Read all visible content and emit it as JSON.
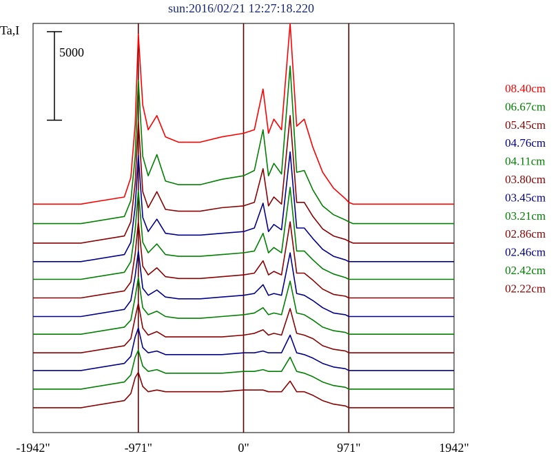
{
  "title": "sun:2016/02/21 12:27:18.220",
  "chart_data": {
    "type": "line",
    "title": "sun:2016/02/21 12:27:18.220",
    "ylabel": "Ta,I",
    "scale_bar_label": "5000",
    "scale_bar_value": 5000,
    "xlim": [
      -1942,
      1942
    ],
    "x_ticks": [
      {
        "value": -1942,
        "label": "-1942\""
      },
      {
        "value": -971,
        "label": "-971\""
      },
      {
        "value": 0,
        "label": "0\""
      },
      {
        "value": 971,
        "label": "971\""
      },
      {
        "value": 1942,
        "label": "1942\""
      }
    ],
    "reference_lines_x": [
      -971,
      0,
      971
    ],
    "x_sample": [
      -1942,
      -1500,
      -1100,
      -1040,
      -1000,
      -971,
      -930,
      -880,
      -800,
      -720,
      -600,
      -400,
      -200,
      0,
      100,
      180,
      230,
      280,
      350,
      430,
      490,
      560,
      640,
      730,
      830,
      940,
      971,
      1010,
      1060,
      1120,
      1250,
      1500,
      1942
    ],
    "series": [
      {
        "name": "08.40cm",
        "color": "#ff0000",
        "baseline_offset": 12400,
        "values": [
          0,
          0,
          400,
          1500,
          4500,
          9600,
          5600,
          4200,
          5000,
          3800,
          3500,
          3500,
          3800,
          4000,
          4200,
          6500,
          4000,
          4800,
          4200,
          10200,
          4400,
          4800,
          3200,
          1800,
          900,
          300,
          100,
          0,
          0,
          0,
          0,
          0,
          0
        ]
      },
      {
        "name": "06.67cm",
        "color": "#008000",
        "baseline_offset": 11300,
        "values": [
          0,
          0,
          400,
          1300,
          3800,
          8100,
          3800,
          2700,
          3900,
          2400,
          2200,
          2200,
          2500,
          2700,
          3000,
          5300,
          2700,
          3400,
          2800,
          8900,
          2900,
          3000,
          1900,
          1000,
          500,
          200,
          100,
          0,
          0,
          0,
          0,
          0,
          0
        ]
      },
      {
        "name": "05.45cm",
        "color": "#8b0000",
        "baseline_offset": 10200,
        "values": [
          0,
          0,
          400,
          1200,
          3400,
          6900,
          2900,
          2000,
          2900,
          1900,
          1800,
          1800,
          2000,
          2100,
          2300,
          4200,
          2100,
          2600,
          2200,
          7200,
          2300,
          2300,
          1500,
          800,
          400,
          200,
          100,
          0,
          0,
          0,
          0,
          0,
          0
        ]
      },
      {
        "name": "04.76cm",
        "color": "#00008b",
        "baseline_offset": 9150,
        "values": [
          0,
          0,
          400,
          1100,
          3100,
          6000,
          2500,
          1700,
          2400,
          1600,
          1500,
          1500,
          1600,
          1700,
          1900,
          3300,
          1700,
          2100,
          1800,
          6200,
          1900,
          1900,
          1300,
          700,
          300,
          100,
          0,
          0,
          0,
          0,
          0,
          0,
          0
        ]
      },
      {
        "name": "04.11cm",
        "color": "#008000",
        "baseline_offset": 8150,
        "values": [
          0,
          0,
          400,
          1000,
          2800,
          5000,
          2100,
          1500,
          2000,
          1400,
          1300,
          1300,
          1400,
          1500,
          1600,
          2600,
          1500,
          1800,
          1500,
          5200,
          1600,
          1600,
          1100,
          600,
          300,
          100,
          0,
          0,
          0,
          0,
          0,
          0,
          0
        ]
      },
      {
        "name": "03.80cm",
        "color": "#8b0000",
        "baseline_offset": 7100,
        "values": [
          0,
          0,
          400,
          900,
          2500,
          4300,
          1800,
          1300,
          1700,
          1200,
          1100,
          1100,
          1200,
          1300,
          1400,
          2100,
          1300,
          1500,
          1300,
          4300,
          1400,
          1400,
          1000,
          500,
          200,
          100,
          0,
          0,
          0,
          0,
          0,
          0,
          0
        ]
      },
      {
        "name": "03.45cm",
        "color": "#00008b",
        "baseline_offset": 6050,
        "values": [
          0,
          0,
          400,
          900,
          2300,
          3700,
          1600,
          1200,
          1500,
          1100,
          1000,
          1000,
          1100,
          1200,
          1300,
          1800,
          1200,
          1300,
          1200,
          3600,
          1300,
          1200,
          900,
          500,
          200,
          100,
          0,
          0,
          0,
          0,
          0,
          0,
          0
        ]
      },
      {
        "name": "03.21cm",
        "color": "#008000",
        "baseline_offset": 5050,
        "values": [
          0,
          0,
          400,
          800,
          2100,
          3200,
          1500,
          1100,
          1300,
          1000,
          900,
          900,
          1000,
          1100,
          1200,
          1500,
          1100,
          1200,
          1100,
          3000,
          1200,
          1100,
          800,
          400,
          200,
          100,
          0,
          0,
          0,
          0,
          0,
          0,
          0
        ]
      },
      {
        "name": "02.86cm",
        "color": "#8b0000",
        "baseline_offset": 4000,
        "values": [
          0,
          0,
          400,
          800,
          2000,
          2800,
          1400,
          1000,
          1200,
          900,
          900,
          900,
          900,
          1000,
          1100,
          1300,
          1000,
          1100,
          1000,
          2500,
          1100,
          1000,
          800,
          400,
          200,
          100,
          0,
          0,
          0,
          0,
          0,
          0,
          0
        ]
      },
      {
        "name": "02.46cm",
        "color": "#00008b",
        "baseline_offset": 3000,
        "values": [
          0,
          0,
          400,
          800,
          1900,
          2400,
          1300,
          1000,
          1100,
          900,
          900,
          900,
          900,
          1000,
          1000,
          1100,
          1000,
          1000,
          1000,
          2000,
          1000,
          900,
          700,
          400,
          200,
          100,
          0,
          0,
          0,
          0,
          0,
          0,
          0
        ]
      },
      {
        "name": "02.42cm",
        "color": "#008000",
        "baseline_offset": 1950,
        "values": [
          0,
          0,
          400,
          800,
          1800,
          2200,
          1300,
          1000,
          1100,
          900,
          900,
          900,
          900,
          1000,
          1000,
          1100,
          1000,
          1000,
          1000,
          1800,
          1000,
          900,
          700,
          400,
          200,
          100,
          0,
          0,
          0,
          0,
          0,
          0,
          0
        ]
      },
      {
        "name": "02.22cm",
        "color": "#8b0000",
        "baseline_offset": 900,
        "values": [
          0,
          0,
          400,
          800,
          1700,
          2000,
          1200,
          900,
          1000,
          900,
          900,
          900,
          900,
          1000,
          1000,
          1000,
          900,
          900,
          900,
          1500,
          900,
          900,
          700,
          400,
          200,
          100,
          0,
          0,
          0,
          0,
          0,
          0,
          0
        ]
      }
    ]
  }
}
